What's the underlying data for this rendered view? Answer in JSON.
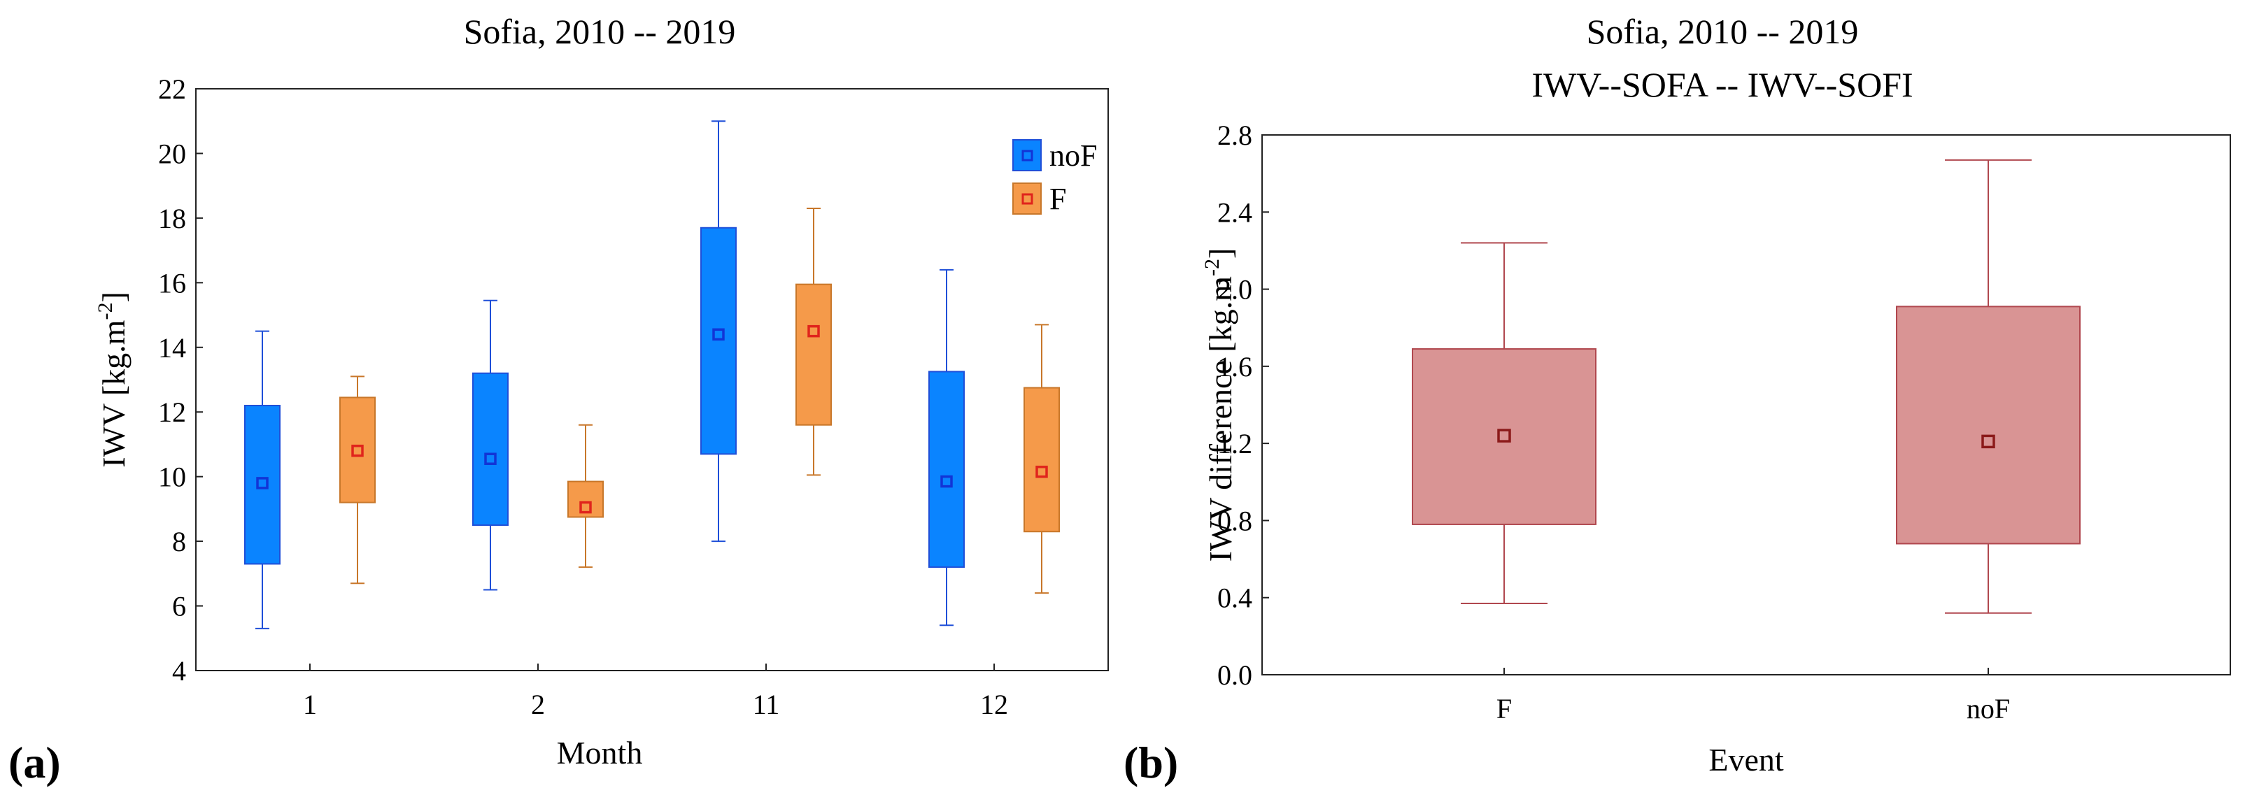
{
  "panel_labels": {
    "a": "(a)",
    "b": "(b)"
  },
  "chart_data": [
    {
      "type": "box",
      "title": "Sofia, 2010 -- 2019",
      "xlabel": "Month",
      "ylabel_main": "IWV [kg.m",
      "ylabel_sup": "-2",
      "ylabel_end": "]",
      "ylim": [
        4,
        22
      ],
      "yticks": [
        "4",
        "6",
        "8",
        "10",
        "12",
        "14",
        "16",
        "18",
        "20",
        "22"
      ],
      "categories": [
        "1",
        "2",
        "11",
        "12"
      ],
      "legend": {
        "placement": "top-right"
      },
      "series": [
        {
          "name": "noF",
          "fill": "#0a84ff",
          "edge": "#1f4fd8",
          "marker": "#1234d6",
          "whisker_low": [
            5.3,
            6.5,
            8.0,
            5.4
          ],
          "q1": [
            7.3,
            8.5,
            10.7,
            7.2
          ],
          "center": [
            9.8,
            10.55,
            14.4,
            9.85
          ],
          "q3": [
            12.2,
            13.2,
            17.7,
            13.25
          ],
          "whisker_high": [
            14.5,
            15.45,
            21.0,
            16.4
          ]
        },
        {
          "name": "F",
          "fill": "#f59a4a",
          "edge": "#c8772a",
          "marker": "#e0241c",
          "whisker_low": [
            6.7,
            7.2,
            10.05,
            6.4
          ],
          "q1": [
            9.2,
            8.75,
            11.6,
            8.3
          ],
          "center": [
            10.8,
            9.05,
            14.5,
            10.15
          ],
          "q3": [
            12.45,
            9.85,
            15.95,
            12.75
          ],
          "whisker_high": [
            13.1,
            11.6,
            18.3,
            14.7
          ]
        }
      ]
    },
    {
      "type": "box",
      "title": "Sofia, 2010 -- 2019",
      "subtitle": "IWV--SOFA -- IWV--SOFI",
      "xlabel": "Event",
      "ylabel_main": "IWV difference [kg.m",
      "ylabel_sup": "-2",
      "ylabel_end": "]",
      "ylim": [
        0.0,
        2.8
      ],
      "yticks": [
        "0.0",
        "0.4",
        "0.8",
        "1.2",
        "1.6",
        "2.0",
        "2.4",
        "2.8"
      ],
      "categories": [
        "F",
        "noF"
      ],
      "fill": "#d99494",
      "edge": "#b0474e",
      "marker": "#8b1a1a",
      "whisker_low": [
        0.37,
        0.32
      ],
      "q1": [
        0.78,
        0.68
      ],
      "center": [
        1.24,
        1.21
      ],
      "q3": [
        1.69,
        1.91
      ],
      "whisker_high": [
        2.24,
        2.67
      ]
    }
  ]
}
